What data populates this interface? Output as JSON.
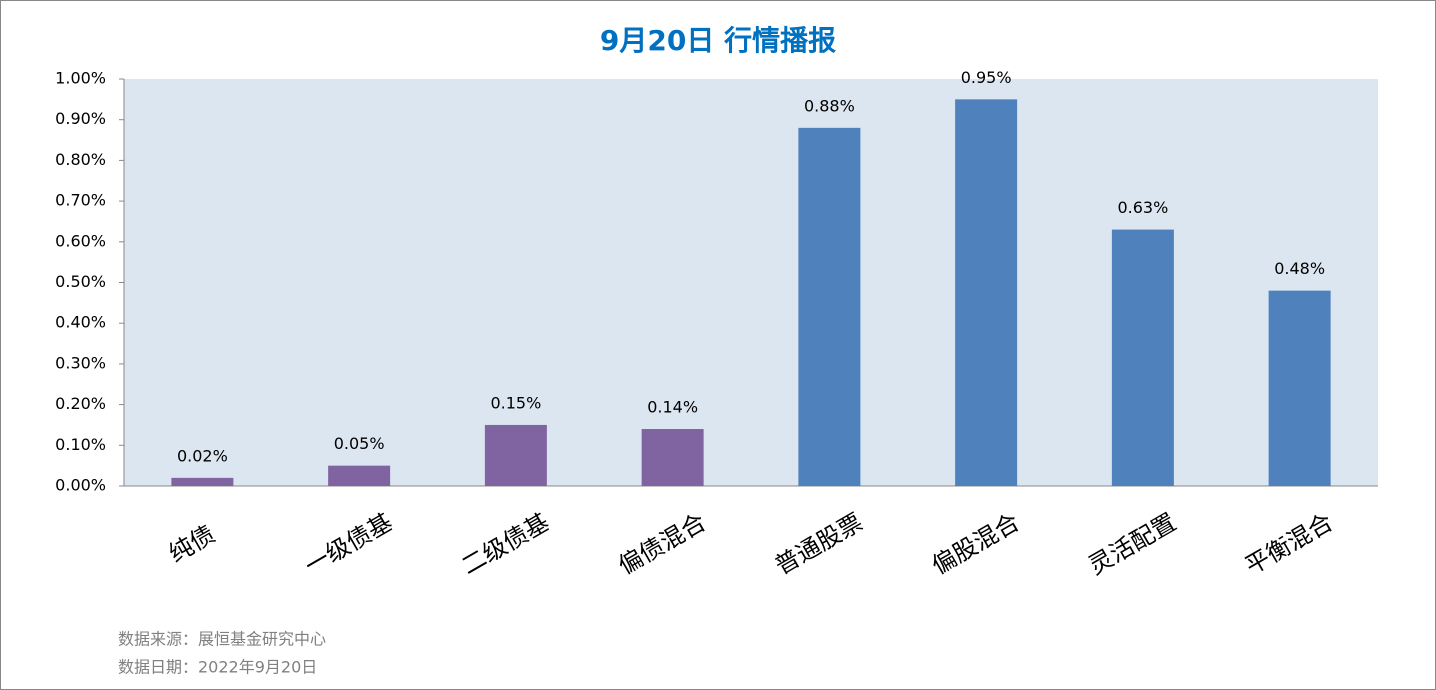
{
  "chart_data": {
    "type": "bar",
    "title": "9月20日  行情播报",
    "categories": [
      "纯债",
      "一级债基",
      "二级债基",
      "偏债混合",
      "普通股票",
      "偏股混合",
      "灵活配置",
      "平衡混合"
    ],
    "values": [
      0.02,
      0.05,
      0.15,
      0.14,
      0.88,
      0.95,
      0.63,
      0.48
    ],
    "value_labels": [
      "0.02%",
      "0.05%",
      "0.15%",
      "0.14%",
      "0.88%",
      "0.95%",
      "0.63%",
      "0.48%"
    ],
    "colors": [
      "#8064a2",
      "#8064a2",
      "#8064a2",
      "#8064a2",
      "#4f81bd",
      "#4f81bd",
      "#4f81bd",
      "#4f81bd"
    ],
    "ylim": [
      0,
      1
    ],
    "yticks": [
      {
        "value": 0,
        "label": "0.00%"
      },
      {
        "value": 0.1,
        "label": "0.10%"
      },
      {
        "value": 0.2,
        "label": "0.20%"
      },
      {
        "value": 0.3,
        "label": "0.30%"
      },
      {
        "value": 0.4,
        "label": "0.40%"
      },
      {
        "value": 0.5,
        "label": "0.50%"
      },
      {
        "value": 0.6,
        "label": "0.60%"
      },
      {
        "value": 0.7,
        "label": "0.70%"
      },
      {
        "value": 0.8,
        "label": "0.80%"
      },
      {
        "value": 0.9,
        "label": "0.90%"
      },
      {
        "value": 1,
        "label": "1.00%"
      }
    ],
    "grid": false,
    "footnotes": [
      "数据来源：展恒基金研究中心",
      "数据日期：2022年9月20日"
    ]
  }
}
